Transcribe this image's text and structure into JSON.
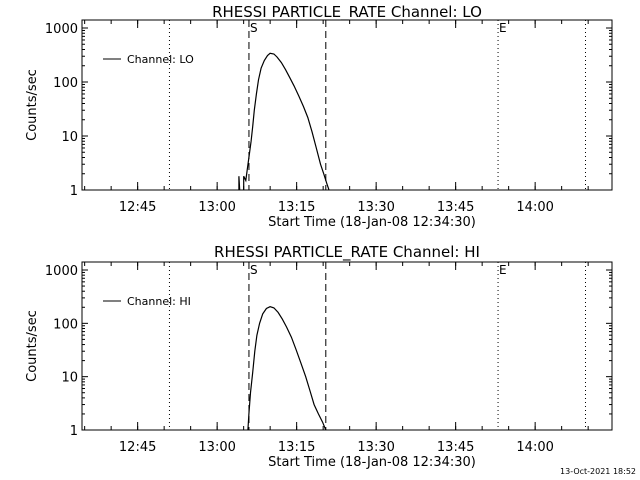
{
  "chart_data": [
    {
      "type": "line",
      "title": "RHESSI PARTICLE_RATE Channel: LO",
      "xlabel": "Start Time (18-Jan-08 12:34:30)",
      "ylabel": "Counts/sec",
      "yscale": "log",
      "ylim": [
        1,
        1000
      ],
      "xlim_minutes": [
        0,
        100
      ],
      "xticks": [
        {
          "minute": 10.5,
          "label": "12:45"
        },
        {
          "minute": 25.5,
          "label": "13:00"
        },
        {
          "minute": 40.5,
          "label": "13:15"
        },
        {
          "minute": 55.5,
          "label": "13:30"
        },
        {
          "minute": 70.5,
          "label": "13:45"
        },
        {
          "minute": 85.5,
          "label": "14:00"
        }
      ],
      "yticks": [
        {
          "value": 1,
          "label": "1"
        },
        {
          "value": 10,
          "label": "10"
        },
        {
          "value": 100,
          "label": "100"
        },
        {
          "value": 1000,
          "label": "1000"
        }
      ],
      "legend": "Channel: LO",
      "markers": [
        {
          "minute": 31.5,
          "label": "S",
          "style": "dashed"
        },
        {
          "minute": 46.0,
          "label": "",
          "style": "dashed"
        },
        {
          "minute": 16.5,
          "label": "",
          "style": "dotted"
        },
        {
          "minute": 78.5,
          "label": "E",
          "style": "dotted"
        },
        {
          "minute": 95.0,
          "label": "",
          "style": "dotted"
        }
      ],
      "series": [
        {
          "name": "Channel: LO",
          "segments": [
            [
              [
                29.6,
                1
              ],
              [
                29.6,
                1.8
              ],
              [
                29.75,
                1
              ]
            ],
            [
              [
                30.5,
                1
              ],
              [
                30.5,
                1.8
              ],
              [
                30.9,
                1.5
              ],
              [
                31.2,
                2.5
              ],
              [
                31.5,
                4
              ],
              [
                31.9,
                8
              ],
              [
                32.2,
                15
              ],
              [
                32.5,
                30
              ],
              [
                32.9,
                60
              ],
              [
                33.3,
                110
              ],
              [
                33.8,
                180
              ],
              [
                34.4,
                250
              ],
              [
                35.0,
                310
              ],
              [
                35.5,
                340
              ],
              [
                36.2,
                330
              ],
              [
                36.8,
                290
              ],
              [
                37.6,
                230
              ],
              [
                38.4,
                170
              ],
              [
                39.2,
                120
              ],
              [
                40.0,
                85
              ],
              [
                40.9,
                55
              ],
              [
                41.8,
                35
              ],
              [
                42.6,
                22
              ],
              [
                43.4,
                12
              ],
              [
                44.2,
                6
              ],
              [
                45.0,
                3
              ],
              [
                45.6,
                2
              ],
              [
                46.2,
                1.3
              ],
              [
                46.6,
                1
              ]
            ]
          ]
        }
      ]
    },
    {
      "type": "line",
      "title": "RHESSI PARTICLE_RATE Channel: HI",
      "xlabel": "Start Time (18-Jan-08 12:34:30)",
      "ylabel": "Counts/sec",
      "yscale": "log",
      "ylim": [
        1,
        1000
      ],
      "xlim_minutes": [
        0,
        100
      ],
      "xticks": [
        {
          "minute": 10.5,
          "label": "12:45"
        },
        {
          "minute": 25.5,
          "label": "13:00"
        },
        {
          "minute": 40.5,
          "label": "13:15"
        },
        {
          "minute": 55.5,
          "label": "13:30"
        },
        {
          "minute": 70.5,
          "label": "13:45"
        },
        {
          "minute": 85.5,
          "label": "14:00"
        }
      ],
      "yticks": [
        {
          "value": 1,
          "label": "1"
        },
        {
          "value": 10,
          "label": "10"
        },
        {
          "value": 100,
          "label": "100"
        },
        {
          "value": 1000,
          "label": "1000"
        }
      ],
      "legend": "Channel: HI",
      "markers": [
        {
          "minute": 31.5,
          "label": "S",
          "style": "dashed"
        },
        {
          "minute": 46.0,
          "label": "",
          "style": "dashed"
        },
        {
          "minute": 16.5,
          "label": "",
          "style": "dotted"
        },
        {
          "minute": 78.5,
          "label": "E",
          "style": "dotted"
        },
        {
          "minute": 95.0,
          "label": "",
          "style": "dotted"
        }
      ],
      "series": [
        {
          "name": "Channel: HI",
          "segments": [
            [
              [
                31.3,
                1
              ],
              [
                31.5,
                2
              ],
              [
                31.8,
                5
              ],
              [
                32.2,
                12
              ],
              [
                32.6,
                30
              ],
              [
                33.0,
                60
              ],
              [
                33.5,
                100
              ],
              [
                34.1,
                150
              ],
              [
                34.8,
                190
              ],
              [
                35.5,
                205
              ],
              [
                36.2,
                195
              ],
              [
                37.0,
                160
              ],
              [
                37.8,
                120
              ],
              [
                38.6,
                85
              ],
              [
                39.5,
                55
              ],
              [
                40.4,
                32
              ],
              [
                41.3,
                18
              ],
              [
                42.2,
                10
              ],
              [
                43.0,
                5.5
              ],
              [
                43.8,
                3
              ],
              [
                44.6,
                2
              ],
              [
                45.4,
                1.4
              ],
              [
                46.0,
                1
              ]
            ]
          ]
        }
      ]
    }
  ],
  "footer": {
    "timestamp": "13-Oct-2021 18:52"
  }
}
